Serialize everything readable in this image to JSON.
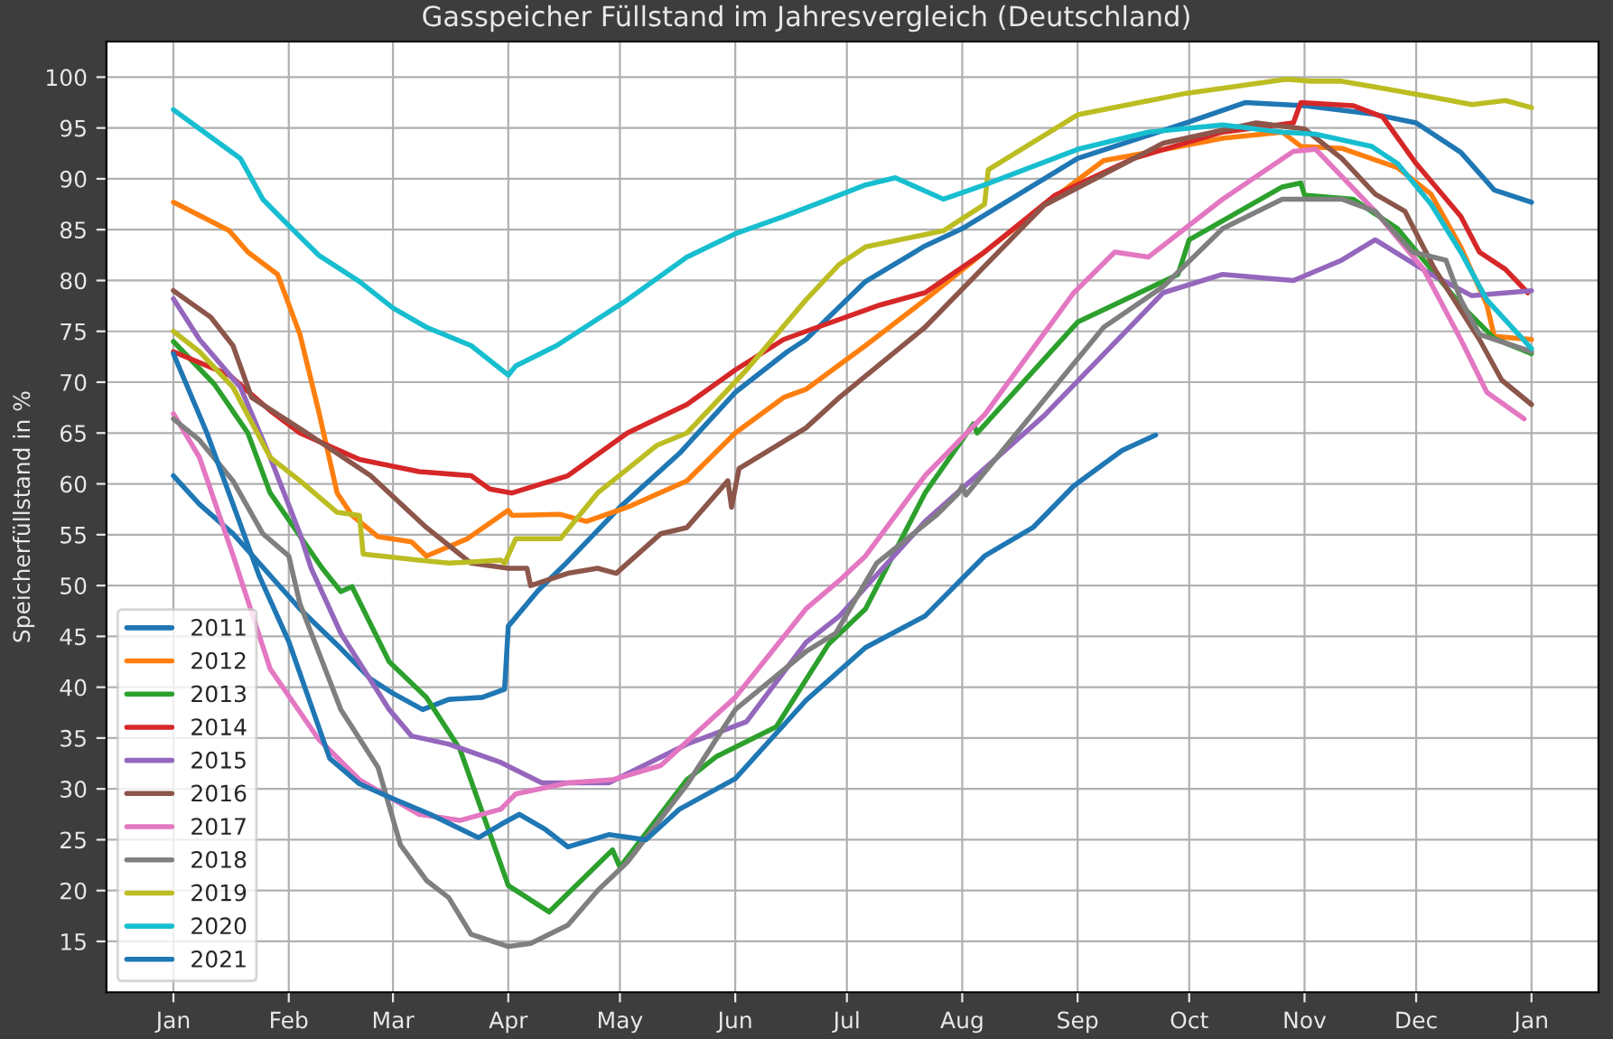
{
  "chart_data": {
    "type": "line",
    "title": "Gasspeicher Füllstand im Jahresvergleich (Deutschland)",
    "ylabel": "Speicherfüllstand in %",
    "xlim": [
      "2020-12-14",
      "2022-01-19"
    ],
    "ylim": [
      10.0,
      103.5
    ],
    "xticks": [
      {
        "value": "2021-01-01",
        "label": "Jan"
      },
      {
        "value": "2021-02-01",
        "label": "Feb"
      },
      {
        "value": "2021-03-01",
        "label": "Mar"
      },
      {
        "value": "2021-04-01",
        "label": "Apr"
      },
      {
        "value": "2021-05-01",
        "label": "May"
      },
      {
        "value": "2021-06-01",
        "label": "Jun"
      },
      {
        "value": "2021-07-01",
        "label": "Jul"
      },
      {
        "value": "2021-08-01",
        "label": "Aug"
      },
      {
        "value": "2021-09-01",
        "label": "Sep"
      },
      {
        "value": "2021-10-01",
        "label": "Oct"
      },
      {
        "value": "2021-11-01",
        "label": "Nov"
      },
      {
        "value": "2021-12-01",
        "label": "Dec"
      },
      {
        "value": "2022-01-01",
        "label": "Jan"
      }
    ],
    "yticks": [
      15,
      20,
      25,
      30,
      35,
      40,
      45,
      50,
      55,
      60,
      65,
      70,
      75,
      80,
      85,
      90,
      95,
      100
    ],
    "grid": true,
    "legend": "bottom left",
    "marker": "none",
    "line_style": "solid",
    "series": [
      {
        "name": "2011",
        "color": "#1f77b4",
        "x": [
          "2021-01-01",
          "2021-01-08",
          "2021-01-17",
          "2021-02-04",
          "2021-02-15",
          "2021-02-23",
          "2021-03-01",
          "2021-03-09",
          "2021-03-16",
          "2021-03-25",
          "2021-03-31",
          "2021-04-01",
          "2021-04-09",
          "2021-04-16",
          "2021-05-01",
          "2021-05-17",
          "2021-06-01",
          "2021-06-15",
          "2021-06-20",
          "2021-07-06",
          "2021-07-22",
          "2021-08-01",
          "2021-09-01",
          "2021-10-01",
          "2021-10-16",
          "2021-11-01",
          "2021-11-19",
          "2021-12-01",
          "2021-12-13",
          "2021-12-22",
          "2022-01-01"
        ],
        "values": [
          60.8,
          58,
          55.1,
          47.7,
          43.8,
          40.8,
          39.4,
          37.8,
          38.8,
          39,
          39.8,
          46,
          49.5,
          52,
          57.7,
          63,
          69,
          73,
          74.2,
          79.9,
          83.4,
          85.1,
          92,
          95.6,
          97.5,
          97.2,
          96.4,
          95.5,
          92.6,
          88.9,
          87.7
        ]
      },
      {
        "name": "2012",
        "color": "#ff7f0e",
        "x": [
          "2021-01-01",
          "2021-01-16",
          "2021-01-21",
          "2021-01-29",
          "2021-02-04",
          "2021-02-09",
          "2021-02-14",
          "2021-02-18",
          "2021-02-25",
          "2021-03-06",
          "2021-03-10",
          "2021-03-21",
          "2021-04-01",
          "2021-04-02",
          "2021-04-15",
          "2021-04-22",
          "2021-05-03",
          "2021-05-19",
          "2021-06-01",
          "2021-06-14",
          "2021-06-20",
          "2021-07-06",
          "2021-07-22",
          "2021-08-07",
          "2021-08-23",
          "2021-09-08",
          "2021-09-20",
          "2021-10-10",
          "2021-10-26",
          "2021-10-31",
          "2021-11-11",
          "2021-11-26",
          "2021-12-05",
          "2021-12-13",
          "2021-12-20",
          "2021-12-22",
          "2022-01-01"
        ],
        "values": [
          87.7,
          84.9,
          82.8,
          80.6,
          74.7,
          67.2,
          59.1,
          56.9,
          54.8,
          54.3,
          52.9,
          54.6,
          57.4,
          56.9,
          57,
          56.3,
          57.7,
          60.3,
          65,
          68.5,
          69.3,
          73.6,
          78.1,
          82.8,
          87.4,
          91.8,
          92.6,
          94,
          94.6,
          93.2,
          93,
          91.1,
          88.5,
          83.3,
          77.6,
          74.5,
          74.2
        ]
      },
      {
        "name": "2013",
        "color": "#2ca02c",
        "x": [
          "2021-01-01",
          "2021-01-12",
          "2021-01-21",
          "2021-01-27",
          "2021-02-10",
          "2021-02-15",
          "2021-02-18",
          "2021-02-28",
          "2021-03-10",
          "2021-03-19",
          "2021-04-01",
          "2021-04-12",
          "2021-04-29",
          "2021-05-01",
          "2021-05-19",
          "2021-05-27",
          "2021-06-12",
          "2021-06-26",
          "2021-07-06",
          "2021-07-22",
          "2021-08-04",
          "2021-08-05",
          "2021-09-01",
          "2021-09-28",
          "2021-10-01",
          "2021-10-26",
          "2021-10-31",
          "2021-11-01",
          "2021-11-14",
          "2021-11-26",
          "2021-12-13",
          "2021-12-22",
          "2022-01-01"
        ],
        "values": [
          74,
          69.8,
          65,
          59.1,
          51.7,
          49.4,
          49.9,
          42.5,
          39,
          33.9,
          20.5,
          17.9,
          24,
          22.3,
          30.9,
          33.2,
          36.1,
          44.2,
          47.7,
          59.1,
          65.9,
          65,
          75.9,
          80.6,
          84,
          89.2,
          89.6,
          88.4,
          88,
          85.1,
          77.6,
          74.3,
          72.8
        ]
      },
      {
        "name": "2014",
        "color": "#d62728",
        "x": [
          "2021-01-01",
          "2021-01-16",
          "2021-01-27",
          "2021-02-04",
          "2021-02-20",
          "2021-03-08",
          "2021-03-22",
          "2021-03-27",
          "2021-04-02",
          "2021-04-17",
          "2021-05-03",
          "2021-05-19",
          "2021-06-01",
          "2021-06-14",
          "2021-06-20",
          "2021-07-10",
          "2021-07-22",
          "2021-08-07",
          "2021-08-26",
          "2021-09-16",
          "2021-10-10",
          "2021-10-29",
          "2021-10-31",
          "2021-11-14",
          "2021-11-22",
          "2021-12-01",
          "2021-12-13",
          "2021-12-18",
          "2021-12-25",
          "2021-12-31"
        ],
        "values": [
          73,
          70.7,
          67.2,
          65,
          62.4,
          61.2,
          60.8,
          59.5,
          59.1,
          60.8,
          65,
          67.8,
          71.2,
          74.2,
          75,
          77.6,
          78.8,
          82.8,
          88.4,
          92,
          94.6,
          95.5,
          97.5,
          97.2,
          96.1,
          91.5,
          86.3,
          82.8,
          81.1,
          78.8
        ]
      },
      {
        "name": "2015",
        "color": "#9467bd",
        "x": [
          "2021-01-01",
          "2021-01-08",
          "2021-01-19",
          "2021-01-27",
          "2021-02-04",
          "2021-02-07",
          "2021-02-15",
          "2021-02-28",
          "2021-03-06",
          "2021-03-16",
          "2021-03-30",
          "2021-04-10",
          "2021-04-28",
          "2021-05-19",
          "2021-06-04",
          "2021-06-20",
          "2021-06-29",
          "2021-07-22",
          "2021-08-23",
          "2021-09-24",
          "2021-10-10",
          "2021-10-29",
          "2021-11-11",
          "2021-11-20",
          "2021-12-05",
          "2021-12-16",
          "2022-01-01"
        ],
        "values": [
          78.2,
          74.2,
          69.5,
          62.6,
          55.1,
          51.7,
          45.3,
          37.8,
          35.2,
          34.4,
          32.6,
          30.6,
          30.6,
          34.4,
          36.6,
          44.4,
          47,
          56.3,
          66.7,
          78.8,
          80.6,
          80,
          82,
          84,
          80.6,
          78.5,
          79
        ]
      },
      {
        "name": "2016",
        "color": "#8c564b",
        "x": [
          "2021-01-01",
          "2021-01-11",
          "2021-01-17",
          "2021-01-22",
          "2021-02-05",
          "2021-02-23",
          "2021-03-10",
          "2021-03-22",
          "2021-04-01",
          "2021-04-06",
          "2021-04-07",
          "2021-04-17",
          "2021-04-25",
          "2021-04-30",
          "2021-05-12",
          "2021-05-19",
          "2021-05-30",
          "2021-05-31",
          "2021-06-02",
          "2021-06-20",
          "2021-06-29",
          "2021-07-22",
          "2021-08-23",
          "2021-09-24",
          "2021-10-19",
          "2021-11-01",
          "2021-11-11",
          "2021-11-20",
          "2021-11-28",
          "2021-12-06",
          "2021-12-18",
          "2021-12-24",
          "2022-01-01"
        ],
        "values": [
          79,
          76.4,
          73.6,
          68.5,
          65.2,
          60.8,
          55.7,
          52.2,
          51.7,
          51.7,
          50,
          51.2,
          51.7,
          51.2,
          55.1,
          55.7,
          60.3,
          57.7,
          61.5,
          65.5,
          68.5,
          75.4,
          87.4,
          93.5,
          95.5,
          94.9,
          92,
          88.5,
          86.8,
          81.1,
          74.2,
          70.2,
          67.8
        ]
      },
      {
        "name": "2017",
        "color": "#e377c2",
        "x": [
          "2021-01-01",
          "2021-01-08",
          "2021-01-17",
          "2021-01-27",
          "2021-02-09",
          "2021-02-20",
          "2021-03-08",
          "2021-03-19",
          "2021-03-30",
          "2021-04-03",
          "2021-04-17",
          "2021-04-29",
          "2021-05-12",
          "2021-06-01",
          "2021-06-20",
          "2021-06-29",
          "2021-07-06",
          "2021-07-22",
          "2021-08-07",
          "2021-08-31",
          "2021-09-11",
          "2021-09-20",
          "2021-10-10",
          "2021-10-29",
          "2021-11-04",
          "2021-11-20",
          "2021-12-03",
          "2021-12-13",
          "2021-12-20",
          "2021-12-30"
        ],
        "values": [
          66.9,
          62.6,
          53,
          41.8,
          34.9,
          30.9,
          27.5,
          26.9,
          28,
          29.5,
          30.6,
          30.9,
          32.3,
          39,
          47.7,
          50.5,
          52.9,
          60.8,
          66.8,
          78.8,
          82.8,
          82.3,
          88,
          92.7,
          92.9,
          86.8,
          81.1,
          74.2,
          69,
          66.4
        ]
      },
      {
        "name": "2018",
        "color": "#7f7f7f",
        "x": [
          "2021-01-01",
          "2021-01-08",
          "2021-01-17",
          "2021-01-25",
          "2021-02-01",
          "2021-02-04",
          "2021-02-15",
          "2021-02-25",
          "2021-03-03",
          "2021-03-10",
          "2021-03-16",
          "2021-03-22",
          "2021-04-01",
          "2021-04-07",
          "2021-04-17",
          "2021-04-25",
          "2021-05-03",
          "2021-05-19",
          "2021-06-01",
          "2021-06-20",
          "2021-06-28",
          "2021-07-09",
          "2021-07-25",
          "2021-07-31",
          "2021-08-01",
          "2021-08-02",
          "2021-09-08",
          "2021-09-24",
          "2021-10-10",
          "2021-10-26",
          "2021-11-11",
          "2021-11-20",
          "2021-11-30",
          "2021-12-09",
          "2021-12-13",
          "2021-12-18",
          "2022-01-01"
        ],
        "values": [
          66.4,
          64.3,
          60.3,
          55.1,
          52.9,
          48.2,
          37.8,
          32.1,
          24.5,
          21,
          19.3,
          15.7,
          14.5,
          14.8,
          16.6,
          20,
          22.8,
          30.4,
          37.8,
          43.5,
          45.3,
          52.2,
          56.9,
          59.1,
          59.8,
          58.9,
          75.4,
          79.4,
          85.1,
          88,
          88,
          86.8,
          82.8,
          82,
          78.1,
          74.7,
          73
        ]
      },
      {
        "name": "2019",
        "color": "#bcbd22",
        "x": [
          "2021-01-01",
          "2021-01-08",
          "2021-01-17",
          "2021-01-27",
          "2021-02-04",
          "2021-02-14",
          "2021-02-20",
          "2021-02-21",
          "2021-03-08",
          "2021-03-16",
          "2021-03-30",
          "2021-03-31",
          "2021-04-03",
          "2021-04-15",
          "2021-04-25",
          "2021-05-11",
          "2021-05-19",
          "2021-06-04",
          "2021-06-20",
          "2021-06-29",
          "2021-07-06",
          "2021-07-27",
          "2021-08-07",
          "2021-08-08",
          "2021-09-01",
          "2021-09-30",
          "2021-10-27",
          "2021-11-03",
          "2021-11-11",
          "2021-11-22",
          "2021-12-06",
          "2021-12-16",
          "2021-12-25",
          "2022-01-01"
        ],
        "values": [
          75,
          73,
          69.5,
          62.6,
          60.3,
          57.2,
          56.9,
          53.1,
          52.5,
          52.2,
          52.5,
          52.2,
          54.6,
          54.6,
          59.1,
          63.8,
          65,
          71.2,
          78.1,
          81.6,
          83.3,
          84.9,
          87.5,
          90.9,
          96.3,
          98.4,
          99.8,
          99.6,
          99.6,
          98.9,
          98,
          97.3,
          97.7,
          97
        ]
      },
      {
        "name": "2020",
        "color": "#17becf",
        "x": [
          "2021-01-01",
          "2021-01-19",
          "2021-01-25",
          "2021-02-01",
          "2021-02-09",
          "2021-02-20",
          "2021-03-01",
          "2021-03-10",
          "2021-03-22",
          "2021-04-01",
          "2021-04-03",
          "2021-04-14",
          "2021-05-03",
          "2021-05-19",
          "2021-06-01",
          "2021-06-14",
          "2021-06-29",
          "2021-07-06",
          "2021-07-14",
          "2021-07-27",
          "2021-08-07",
          "2021-09-01",
          "2021-09-20",
          "2021-10-10",
          "2021-10-26",
          "2021-11-04",
          "2021-11-19",
          "2021-11-26",
          "2021-12-05",
          "2021-12-13",
          "2021-12-20",
          "2022-01-01"
        ],
        "values": [
          96.8,
          92,
          88,
          85.4,
          82.5,
          79.9,
          77.3,
          75.4,
          73.6,
          70.7,
          71.6,
          73.6,
          78.1,
          82.3,
          84.6,
          86.3,
          88.4,
          89.4,
          90.1,
          88,
          89.4,
          92.9,
          94.6,
          95.3,
          94.6,
          94.4,
          93.2,
          91.5,
          87.5,
          82.8,
          78.1,
          73.3
        ]
      },
      {
        "name": "2021",
        "color": "#1f77b4",
        "x": [
          "2021-01-01",
          "2021-01-10",
          "2021-01-17",
          "2021-01-24",
          "2021-02-01",
          "2021-02-12",
          "2021-02-20",
          "2021-02-28",
          "2021-03-11",
          "2021-03-24",
          "2021-03-30",
          "2021-04-04",
          "2021-04-11",
          "2021-04-17",
          "2021-04-28",
          "2021-05-08",
          "2021-05-17",
          "2021-06-01",
          "2021-06-20",
          "2021-07-06",
          "2021-07-22",
          "2021-08-07",
          "2021-08-20",
          "2021-08-31",
          "2021-09-13",
          "2021-09-22"
        ],
        "values": [
          72.8,
          65,
          58,
          51,
          44.5,
          33,
          30.5,
          29.2,
          27.5,
          25.2,
          26.5,
          27.5,
          26,
          24.3,
          25.5,
          25,
          28,
          31,
          38.7,
          43.9,
          47,
          52.9,
          55.7,
          59.8,
          63.3,
          64.8
        ]
      }
    ]
  }
}
